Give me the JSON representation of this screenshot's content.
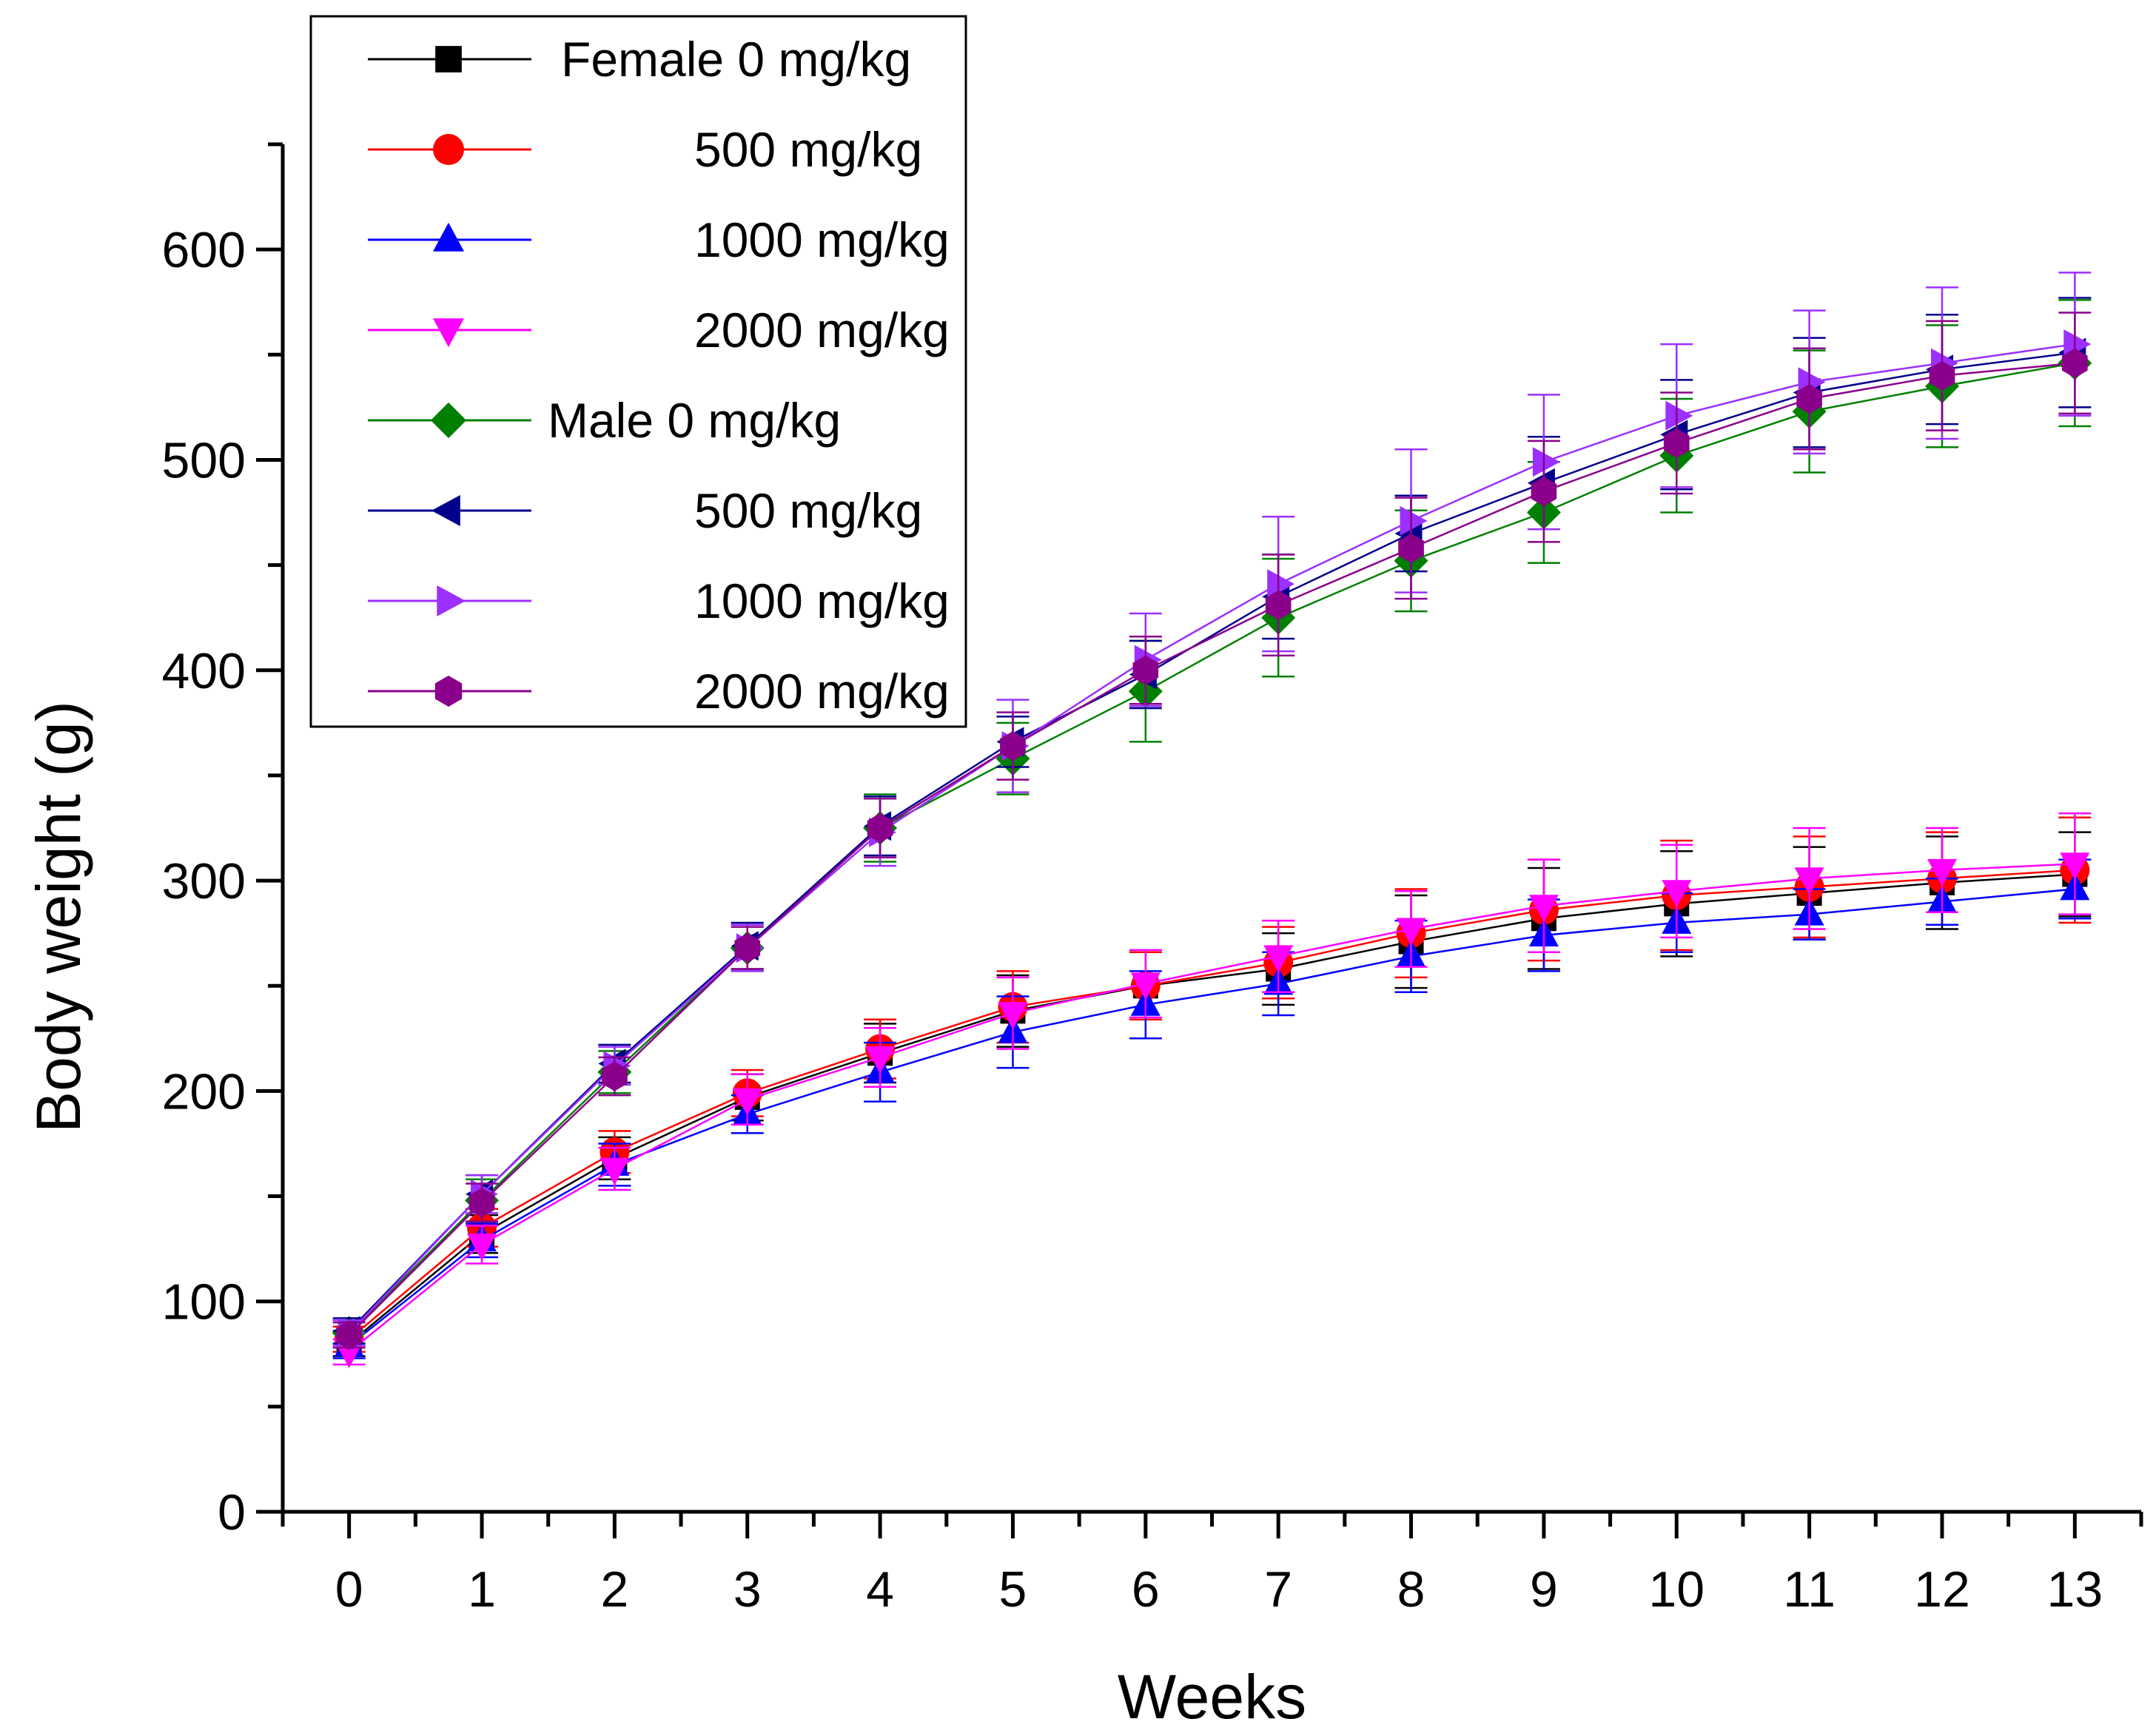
{
  "chart_data": {
    "type": "line",
    "title": "",
    "xlabel": "Weeks",
    "ylabel": "Body weight (g)",
    "xlim": [
      -0.5,
      13.5
    ],
    "ylim": [
      0,
      650
    ],
    "xticks": [
      0,
      1,
      2,
      3,
      4,
      5,
      6,
      7,
      8,
      9,
      10,
      11,
      12,
      13
    ],
    "yticks": [
      0,
      100,
      200,
      300,
      400,
      500,
      600
    ],
    "grid": false,
    "legend_position": "top-left",
    "x": [
      0,
      1,
      2,
      3,
      4,
      5,
      6,
      7,
      8,
      9,
      10,
      11,
      12,
      13
    ],
    "series": [
      {
        "name": "Female 0 mg/kg",
        "label": "Female 0 mg/kg",
        "color": "#000000",
        "marker": "square",
        "values": [
          80,
          132,
          168,
          197,
          218,
          238,
          250,
          258,
          271,
          282,
          289,
          294,
          299,
          303
        ],
        "errors": [
          6,
          9,
          10,
          11,
          14,
          17,
          16,
          17,
          22,
          24,
          25,
          22,
          22,
          20
        ]
      },
      {
        "name": "Female 500 mg/kg",
        "label": "500 mg/kg",
        "color": "#ff0000",
        "marker": "circle",
        "values": [
          82,
          135,
          171,
          199,
          220,
          240,
          250,
          261,
          275,
          286,
          293,
          297,
          301,
          305
        ],
        "errors": [
          6,
          9,
          10,
          11,
          14,
          17,
          16,
          17,
          21,
          24,
          26,
          24,
          22,
          25
        ]
      },
      {
        "name": "Female 1000 mg/kg",
        "label": "1000 mg/kg",
        "color": "#0000ff",
        "marker": "triangle-up",
        "values": [
          79,
          129,
          165,
          189,
          209,
          228,
          241,
          251,
          264,
          274,
          280,
          284,
          290,
          296
        ],
        "errors": [
          6,
          8,
          10,
          9,
          14,
          17,
          16,
          15,
          17,
          17,
          14,
          12,
          11,
          14
        ]
      },
      {
        "name": "Female 2000 mg/kg",
        "label": "2000 mg/kg",
        "color": "#ff00ff",
        "marker": "triangle-down",
        "values": [
          76,
          127,
          163,
          196,
          216,
          237,
          251,
          264,
          277,
          288,
          295,
          301,
          305,
          308
        ],
        "errors": [
          6,
          9,
          10,
          12,
          14,
          17,
          16,
          17,
          18,
          22,
          22,
          24,
          20,
          24
        ]
      },
      {
        "name": "Male 0 mg/kg",
        "label": "Male 0 mg/kg",
        "color": "#008000",
        "marker": "diamond",
        "values": [
          85,
          148,
          209,
          268,
          325,
          358,
          390,
          425,
          452,
          475,
          502,
          523,
          535,
          546
        ],
        "errors": [
          6,
          10,
          10,
          11,
          16,
          17,
          24,
          28,
          24,
          24,
          27,
          29,
          29,
          30
        ]
      },
      {
        "name": "Male 500 mg/kg",
        "label": "500 mg/kg",
        "color": "#00008b",
        "marker": "triangle-left",
        "values": [
          86,
          151,
          213,
          269,
          326,
          366,
          398,
          435,
          465,
          489,
          512,
          532,
          543,
          551
        ],
        "errors": [
          6,
          9,
          9,
          11,
          14,
          12,
          16,
          20,
          18,
          22,
          26,
          26,
          26,
          26
        ]
      },
      {
        "name": "Male 1000 mg/kg",
        "label": "1000 mg/kg",
        "color": "#9b30ff",
        "marker": "triangle-right",
        "values": [
          85,
          151,
          212,
          268,
          323,
          364,
          405,
          441,
          471,
          499,
          521,
          537,
          546,
          555
        ],
        "errors": [
          6,
          9,
          9,
          11,
          16,
          22,
          22,
          32,
          34,
          32,
          34,
          34,
          36,
          34
        ]
      },
      {
        "name": "Male 2000 mg/kg",
        "label": "2000 mg/kg",
        "color": "#8b008b",
        "marker": "hexagon",
        "values": [
          84,
          147,
          207,
          268,
          325,
          364,
          400,
          431,
          458,
          485,
          508,
          529,
          540,
          546
        ],
        "errors": [
          6,
          9,
          9,
          10,
          14,
          16,
          16,
          24,
          24,
          24,
          24,
          24,
          26,
          24
        ]
      }
    ]
  }
}
